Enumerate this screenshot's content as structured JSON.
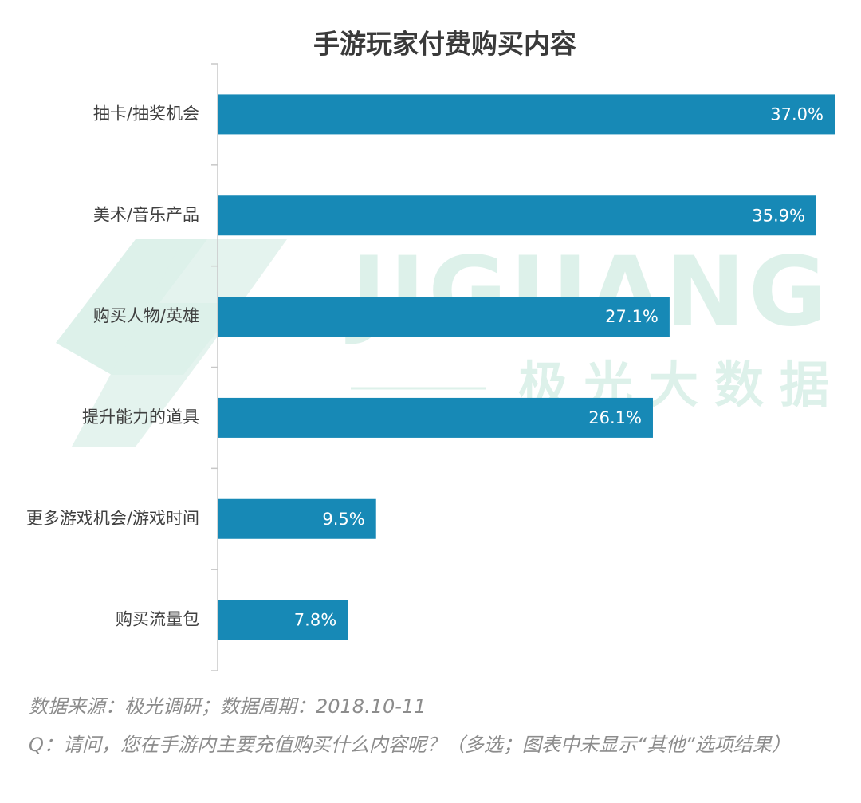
{
  "chart_data": {
    "type": "bar",
    "orientation": "horizontal",
    "title": "手游玩家付费购买内容",
    "categories": [
      "抽卡/抽奖机会",
      "美术/音乐产品",
      "购买人物/英雄",
      "提升能力的道具",
      "更多游戏机会/游戏时间",
      "购买流量包"
    ],
    "values": [
      37.0,
      35.9,
      27.1,
      26.1,
      9.5,
      7.8
    ],
    "value_labels": [
      "37.0%",
      "35.9%",
      "27.1%",
      "26.1%",
      "9.5%",
      "7.8%"
    ],
    "color": "#1789b6",
    "watermark": {
      "text": "JIGUANG",
      "subtext": "极光大数据"
    },
    "source": "数据来源：极光调研；数据周期：2018.10-11",
    "note": "Q：请问，您在手游内主要充值购买什么内容呢？（多选；图表中未显示“其他”选项结果）"
  }
}
